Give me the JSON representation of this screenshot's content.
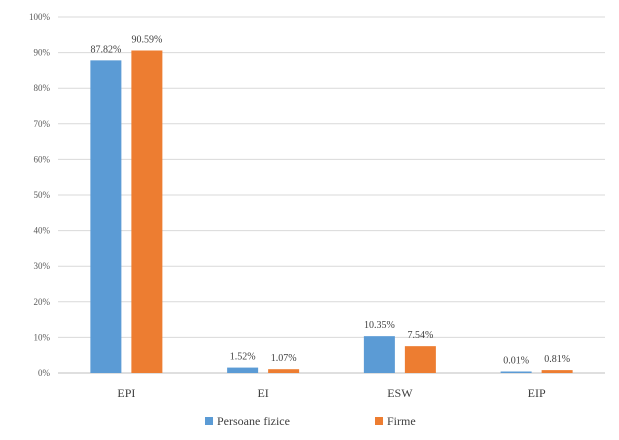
{
  "chart_data": {
    "type": "bar",
    "title": "",
    "xlabel": "",
    "ylabel": "",
    "categories": [
      "EPI",
      "EI",
      "ESW",
      "EIP"
    ],
    "series": [
      {
        "name": "Persoane fizice",
        "color": "#5b9bd5",
        "values": [
          87.82,
          1.52,
          10.35,
          0.01
        ],
        "labels": [
          "87.82%",
          "1.52%",
          "10.35%",
          "0.01%"
        ]
      },
      {
        "name": "Firme",
        "color": "#ed7d31",
        "values": [
          90.59,
          1.07,
          7.54,
          0.81
        ],
        "labels": [
          "90.59%",
          "1.07%",
          "7.54%",
          "0.81%"
        ]
      }
    ],
    "y_ticks": [
      "0%",
      "10%",
      "20%",
      "30%",
      "40%",
      "50%",
      "60%",
      "70%",
      "80%",
      "90%",
      "100%"
    ],
    "ylim": [
      0,
      100
    ],
    "grid": true,
    "legend": "bottom-center"
  }
}
